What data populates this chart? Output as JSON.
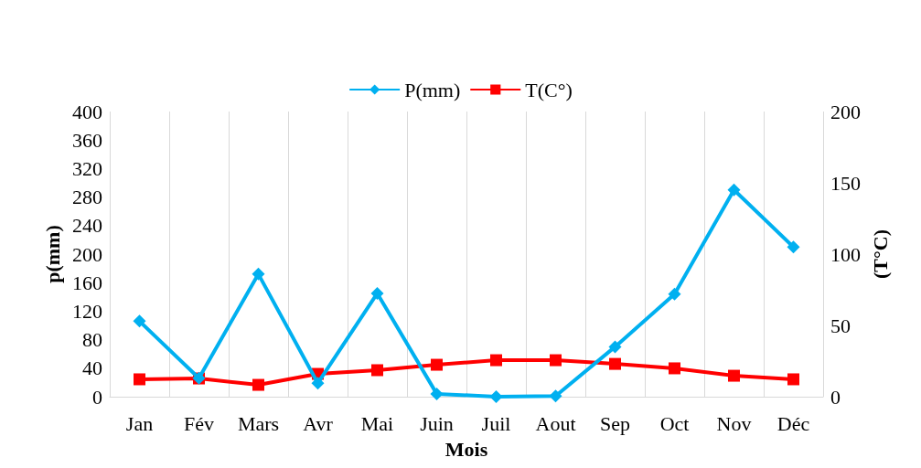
{
  "chart_data": {
    "type": "line",
    "xlabel": "Mois",
    "ylabel": "p(mm)",
    "y2label": "(T°C)",
    "categories": [
      "Jan",
      "Fév",
      "Mars",
      "Avr",
      "Mai",
      "Juin",
      "Juil",
      "Aout",
      "Sep",
      "Oct",
      "Nov",
      "Déc"
    ],
    "series": [
      {
        "name": "P(mm)",
        "color": "#00b0f0",
        "marker": "diamond",
        "values": [
          106,
          26,
          172,
          19,
          145,
          4,
          0,
          1,
          70,
          144,
          290,
          210
        ]
      },
      {
        "name": "T(C°)",
        "color": "#ff0000",
        "marker": "square",
        "axis": "y2",
        "values": [
          12.2,
          12.8,
          8.3,
          16,
          18.6,
          22.4,
          25.6,
          25.6,
          23,
          19.9,
          14.7,
          12.2
        ]
      }
    ],
    "ylim": [
      0,
      400
    ],
    "yticks": [
      0,
      40,
      80,
      120,
      160,
      200,
      240,
      280,
      320,
      360,
      400
    ],
    "y2lim": [
      0,
      200
    ],
    "y2ticks": [
      0,
      50,
      100,
      150,
      200
    ],
    "grid": "x",
    "legend": "top",
    "line_style": "solid"
  }
}
